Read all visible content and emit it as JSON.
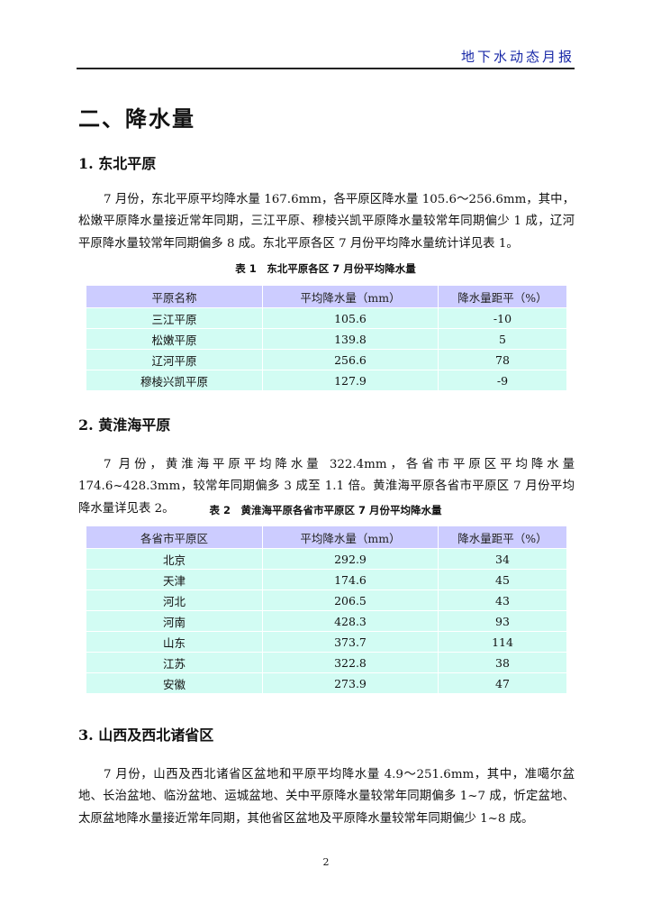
{
  "header": {
    "title": "地下水动态月报"
  },
  "section": {
    "title": "二、降水量"
  },
  "subsections": [
    {
      "title": "1.  东北平原",
      "paragraph": "7 月份，东北平原平均降水量 167.6mm，各平原区降水量 105.6～256.6mm，其中，松嫩平原降水量接近常年同期，三江平原、穆棱兴凯平原降水量较常年同期偏少 1 成，辽河平原降水量较常年同期偏多 8 成。东北平原各区 7 月份平均降水量统计详见表 1。",
      "table": {
        "caption": "表 1　东北平原各区 7 月份平均降水量",
        "headers": [
          "平原名称",
          "平均降水量（mm）",
          "降水量距平（%）"
        ],
        "rows": [
          [
            "三江平原",
            "105.6",
            "-10"
          ],
          [
            "松嫩平原",
            "139.8",
            "5"
          ],
          [
            "辽河平原",
            "256.6",
            "78"
          ],
          [
            "穆棱兴凯平原",
            "127.9",
            "-9"
          ]
        ]
      }
    },
    {
      "title": "2.  黄淮海平原",
      "paragraph": "7 月份，黄淮海平原平均降水量 322.4mm，各省市平原区平均降水量 174.6~428.3mm，较常年同期偏多 3 成至 1.1 倍。黄淮海平原各省市平原区 7 月份平均降水量详见表 2。",
      "table": {
        "caption": "表 2　黄淮海平原各省市平原区 7 月份平均降水量",
        "headers": [
          "各省市平原区",
          "平均降水量（mm）",
          "降水量距平（%）"
        ],
        "rows": [
          [
            "北京",
            "292.9",
            "34"
          ],
          [
            "天津",
            "174.6",
            "45"
          ],
          [
            "河北",
            "206.5",
            "43"
          ],
          [
            "河南",
            "428.3",
            "93"
          ],
          [
            "山东",
            "373.7",
            "114"
          ],
          [
            "江苏",
            "322.8",
            "38"
          ],
          [
            "安徽",
            "273.9",
            "47"
          ]
        ]
      }
    },
    {
      "title": "3.  山西及西北诸省区",
      "paragraph": "7 月份，山西及西北诸省区盆地和平原平均降水量 4.9～251.6mm，其中，准噶尔盆地、长治盆地、临汾盆地、运城盆地、关中平原降水量较常年同期偏多 1~7 成，忻定盆地、太原盆地降水量接近常年同期，其他省区盆地及平原降水量较常年同期偏少 1~8 成。"
    }
  ],
  "page_number": "2",
  "colors": {
    "header_text": "#1a2aa8",
    "table_header_bg": "#ccccff",
    "table_row_bg": "#d2fcf3"
  }
}
